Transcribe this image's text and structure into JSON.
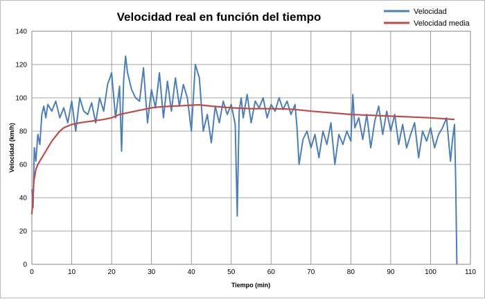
{
  "colors": {
    "velocidad": "#4a7ebb",
    "velocidad_media": "#be4b48",
    "grid": "#868686",
    "plot_border": "#868686"
  },
  "chart_data": {
    "type": "line",
    "title": "Velocidad real en función del tiempo",
    "xlabel": "Tiempo (min)",
    "ylabel": "Velocidad  (km/h)",
    "xlim": [
      0,
      110
    ],
    "ylim": [
      0,
      140
    ],
    "xticks": [
      "0",
      "10",
      "20",
      "30",
      "40",
      "50",
      "60",
      "70",
      "80",
      "90",
      "100",
      "110"
    ],
    "yticks": [
      "0",
      "20",
      "40",
      "60",
      "80",
      "100",
      "120",
      "140"
    ],
    "grid": true,
    "legend_position": "top-right",
    "series": [
      {
        "name": "Velocidad",
        "x": [
          0,
          0.3,
          0.6,
          1,
          1.5,
          2,
          2.5,
          3,
          3.5,
          4,
          5,
          6,
          7,
          8,
          9,
          10,
          11,
          12,
          13,
          14,
          15,
          16,
          17,
          18,
          19,
          20,
          21,
          22,
          22.5,
          23,
          23.5,
          24,
          25,
          26,
          27,
          28,
          29,
          30,
          31,
          32,
          33,
          34,
          35,
          36,
          37,
          38,
          39,
          40,
          41,
          42,
          43,
          44,
          45,
          46,
          47,
          48,
          49,
          50,
          51,
          51.5,
          52,
          52.5,
          53,
          54,
          55,
          56,
          57,
          58,
          59,
          60,
          61,
          62,
          63,
          64,
          65,
          66,
          66.5,
          67,
          68,
          69,
          70,
          71,
          72,
          73,
          74,
          75,
          76,
          77,
          78,
          79,
          80,
          80.5,
          81,
          82,
          83,
          84,
          85,
          86,
          87,
          88,
          89,
          90,
          91,
          92,
          93,
          94,
          95,
          96,
          97,
          98,
          99,
          100,
          101,
          102,
          103,
          104,
          105,
          105.5,
          106,
          106.3,
          106.6
        ],
        "values": [
          45,
          34,
          70,
          62,
          78,
          72,
          90,
          95,
          88,
          96,
          92,
          98,
          88,
          94,
          85,
          98,
          80,
          100,
          92,
          90,
          97,
          85,
          100,
          92,
          108,
          115,
          88,
          107,
          68,
          110,
          125,
          115,
          105,
          100,
          98,
          118,
          85,
          105,
          94,
          115,
          88,
          110,
          92,
          112,
          95,
          108,
          100,
          80,
          120,
          112,
          80,
          90,
          73,
          95,
          85,
          98,
          90,
          96,
          84,
          29,
          92,
          100,
          88,
          102,
          85,
          98,
          94,
          100,
          88,
          96,
          92,
          100,
          93,
          98,
          90,
          96,
          82,
          60,
          75,
          80,
          70,
          78,
          64,
          80,
          72,
          85,
          60,
          78,
          72,
          80,
          74,
          102,
          82,
          88,
          75,
          90,
          70,
          86,
          95,
          78,
          92,
          80,
          90,
          72,
          84,
          70,
          78,
          85,
          64,
          80,
          74,
          82,
          70,
          78,
          82,
          88,
          62,
          75,
          84,
          50,
          0
        ]
      },
      {
        "name": "Velocidad media",
        "x": [
          0,
          0.5,
          1,
          1.5,
          2,
          3,
          4,
          5,
          6,
          7,
          8,
          10,
          12,
          15,
          18,
          20,
          22,
          24,
          26,
          28,
          30,
          32,
          35,
          38,
          40,
          42,
          45,
          50,
          55,
          60,
          65,
          70,
          80,
          90,
          100,
          106
        ],
        "values": [
          30,
          50,
          57,
          60,
          62,
          66,
          70,
          74,
          77,
          80,
          82,
          84,
          85,
          86,
          87,
          88,
          90,
          91,
          92,
          93,
          94,
          94.5,
          95,
          95.3,
          95.6,
          95.8,
          95,
          94,
          93.5,
          93.5,
          93.2,
          92,
          90,
          89,
          88,
          87
        ]
      }
    ]
  }
}
